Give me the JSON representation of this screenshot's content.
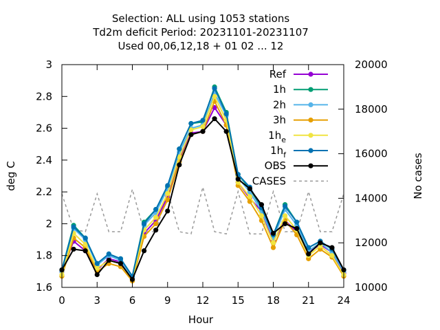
{
  "chart_data": {
    "type": "line",
    "title_lines": [
      "Selection: ALL using  1053 stations",
      "Td2m deficit   Period: 20231101-20231107",
      "Used  00,06,12,18 + 01 02 ... 12"
    ],
    "xlabel": "Hour",
    "ylabel": "deg C",
    "y2label": "No cases",
    "xlim": [
      0,
      24
    ],
    "ylim": [
      1.6,
      3.0
    ],
    "y2lim": [
      10000,
      20000
    ],
    "xticks": [
      0,
      3,
      6,
      9,
      12,
      15,
      18,
      21,
      24
    ],
    "yticks": [
      1.6,
      1.8,
      2.0,
      2.2,
      2.4,
      2.6,
      2.8,
      3.0
    ],
    "yticklabels": [
      "1.6",
      "1.8",
      "2",
      "2.2",
      "2.4",
      "2.6",
      "2.8",
      "3"
    ],
    "y2ticks": [
      10000,
      12000,
      14000,
      16000,
      18000,
      20000
    ],
    "legend_position": "top-right",
    "x": [
      0,
      1,
      2,
      3,
      4,
      5,
      6,
      7,
      8,
      9,
      10,
      11,
      12,
      13,
      14,
      15,
      16,
      17,
      18,
      19,
      20,
      21,
      22,
      23,
      24
    ],
    "series": [
      {
        "name": "Ref",
        "color": "#9400d3",
        "marker": "circle",
        "axis": "y1",
        "values": [
          1.7,
          1.89,
          1.83,
          1.71,
          1.78,
          1.76,
          1.66,
          1.94,
          2.02,
          2.17,
          2.4,
          2.57,
          2.58,
          2.73,
          2.62,
          2.26,
          2.16,
          2.08,
          1.89,
          2.02,
          1.95,
          1.82,
          1.87,
          1.82,
          1.69
        ]
      },
      {
        "name": "1h",
        "color": "#009e73",
        "marker": "circle",
        "axis": "y1",
        "values": [
          1.71,
          1.99,
          1.91,
          1.75,
          1.81,
          1.78,
          1.67,
          2.01,
          2.09,
          2.23,
          2.47,
          2.63,
          2.64,
          2.86,
          2.7,
          2.31,
          2.22,
          2.1,
          1.93,
          2.12,
          2.01,
          1.85,
          1.89,
          1.84,
          1.71
        ]
      },
      {
        "name": "2h",
        "color": "#56b4e9",
        "marker": "circle",
        "axis": "y1",
        "values": [
          1.7,
          1.97,
          1.9,
          1.74,
          1.8,
          1.77,
          1.66,
          1.99,
          2.07,
          2.22,
          2.45,
          2.6,
          2.62,
          2.82,
          2.68,
          2.29,
          2.2,
          2.08,
          1.91,
          2.09,
          1.99,
          1.83,
          1.88,
          1.82,
          1.7
        ]
      },
      {
        "name": "3h",
        "color": "#e69f00",
        "marker": "circle",
        "axis": "y1",
        "values": [
          1.67,
          1.91,
          1.85,
          1.7,
          1.75,
          1.73,
          1.64,
          1.92,
          2.0,
          2.15,
          2.39,
          2.56,
          2.58,
          2.77,
          2.62,
          2.24,
          2.14,
          2.02,
          1.85,
          2.02,
          1.93,
          1.78,
          1.84,
          1.79,
          1.67
        ]
      },
      {
        "name": "1h",
        "sub": "e",
        "color": "#f0e442",
        "marker": "circle",
        "axis": "y1",
        "values": [
          1.68,
          1.94,
          1.87,
          1.72,
          1.77,
          1.75,
          1.65,
          1.96,
          2.04,
          2.19,
          2.42,
          2.59,
          2.61,
          2.8,
          2.65,
          2.26,
          2.17,
          2.05,
          1.88,
          2.05,
          1.96,
          1.8,
          1.86,
          1.8,
          1.68
        ]
      },
      {
        "name": "1h",
        "sub": "f",
        "color": "#0072b2",
        "marker": "circle",
        "axis": "y1",
        "values": [
          1.71,
          1.98,
          1.91,
          1.75,
          1.81,
          1.78,
          1.67,
          2.0,
          2.09,
          2.24,
          2.47,
          2.63,
          2.65,
          2.85,
          2.69,
          2.31,
          2.23,
          2.1,
          1.93,
          2.11,
          2.01,
          1.85,
          1.89,
          1.84,
          1.71
        ]
      },
      {
        "name": "OBS",
        "color": "#000000",
        "marker": "circle",
        "axis": "y1",
        "values": [
          1.71,
          1.84,
          1.83,
          1.68,
          1.77,
          1.75,
          1.65,
          1.83,
          1.96,
          2.08,
          2.37,
          2.56,
          2.58,
          2.66,
          2.58,
          2.28,
          2.22,
          2.12,
          1.94,
          2.0,
          1.97,
          1.81,
          1.88,
          1.85,
          1.71
        ]
      },
      {
        "name": "CASES",
        "color": "#999999",
        "dash": "4,4",
        "axis": "y2",
        "values": [
          14200,
          12600,
          12500,
          14200,
          12500,
          12500,
          14400,
          12500,
          12500,
          14300,
          12500,
          12400,
          14500,
          12500,
          12400,
          14300,
          12400,
          12400,
          14300,
          12500,
          12500,
          14300,
          12500,
          12500,
          14200
        ]
      }
    ]
  }
}
